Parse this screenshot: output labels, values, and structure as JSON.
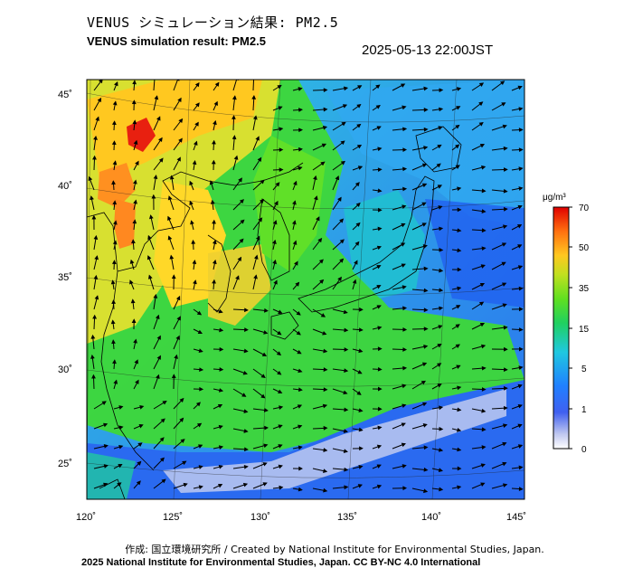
{
  "header": {
    "title_jp": "VENUS シミュレーション結果: PM2.5",
    "title_en": "VENUS simulation result: PM2.5",
    "datetime": "2025-05-13 22:00JST"
  },
  "map": {
    "lon_ticks": [
      "120˚",
      "125˚",
      "130˚",
      "135˚",
      "140˚",
      "145˚"
    ],
    "lat_ticks": [
      "45˚",
      "40˚",
      "35˚",
      "30˚",
      "25˚"
    ],
    "field": "PM2.5 concentration",
    "overlay": "wind vectors"
  },
  "colorbar": {
    "unit": "μg/m³",
    "ticks": [
      "70",
      "50",
      "35",
      "15",
      "5",
      "1",
      "0"
    ],
    "colors": [
      "#ffffff",
      "#8090d8",
      "#2050ff",
      "#20a0ff",
      "#20d0d0",
      "#20d060",
      "#40e020",
      "#a0e020",
      "#ffd020",
      "#ffa020",
      "#ff6010",
      "#e00000"
    ]
  },
  "footer": {
    "credit_line": "作成: 国立環境研究所 / Created by National Institute for Environmental Studies, Japan.",
    "license_line": "2025 National Institute for Environmental Studies, Japan. CC BY-NC 4.0 International"
  }
}
